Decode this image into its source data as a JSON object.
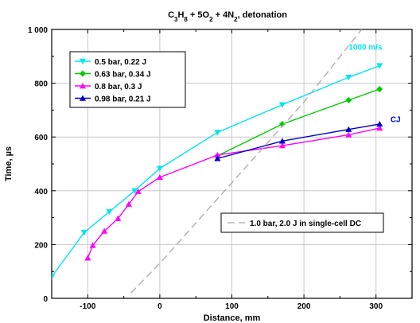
{
  "chart_data": {
    "type": "line",
    "title_parts": [
      {
        "t": "C",
        "sub": false
      },
      {
        "t": "3",
        "sub": true
      },
      {
        "t": "H",
        "sub": false
      },
      {
        "t": "8",
        "sub": true
      },
      {
        "t": " + 5O",
        "sub": false
      },
      {
        "t": "2",
        "sub": true
      },
      {
        "t": " + 4N",
        "sub": false
      },
      {
        "t": "2",
        "sub": true
      },
      {
        "t": ", detonation",
        "sub": false
      }
    ],
    "xlabel": "Distance, mm",
    "ylabel": "Time, µs",
    "xlim": [
      -150,
      350
    ],
    "ylim": [
      0,
      1000
    ],
    "xticks": [
      -100,
      0,
      100,
      200,
      300
    ],
    "yticks": [
      0,
      200,
      400,
      600,
      800,
      1000
    ],
    "ytick_labels": [
      "0",
      "200",
      "400",
      "600",
      "800",
      "1 000"
    ],
    "grid": true,
    "legend_position": "top-left",
    "series": [
      {
        "name": "0.5 bar, 0.22 J",
        "color": "#00e5f0",
        "marker": "triangle-down",
        "x": [
          -150,
          -105,
          -70,
          -35,
          0,
          80,
          170,
          262,
          305
        ],
        "y": [
          80,
          245,
          322,
          400,
          483,
          617,
          720,
          822,
          865
        ]
      },
      {
        "name": "0.63 bar, 0.34 J",
        "color": "#00cc00",
        "marker": "diamond",
        "x": [
          80,
          170,
          262,
          305
        ],
        "y": [
          530,
          648,
          737,
          778
        ]
      },
      {
        "name": "0.8 bar, 0.3 J",
        "color": "#ff00ff",
        "marker": "triangle-up",
        "x": [
          -100,
          -93,
          -77,
          -58,
          -43,
          -30,
          0,
          80,
          170,
          262,
          305
        ],
        "y": [
          150,
          197,
          250,
          297,
          350,
          397,
          450,
          533,
          568,
          608,
          633
        ]
      },
      {
        "name": "0.98 bar, 0.21 J",
        "color": "#0000cc",
        "marker": "triangle-up",
        "x": [
          80,
          170,
          262,
          305
        ],
        "y": [
          520,
          585,
          628,
          648
        ]
      },
      {
        "name": "1.0 bar, 2.0 J in single-cell DC",
        "color": "#aaaaaa",
        "marker": "none",
        "dashed": true,
        "x": [
          -40,
          0,
          100,
          200,
          280
        ],
        "y": [
          20,
          130,
          430,
          730,
          1000
        ]
      }
    ],
    "annotations": [
      {
        "text": "1000 m/s",
        "color": "#00e5f0",
        "x": 262,
        "y": 925
      },
      {
        "text": "CJ",
        "color": "#0000cc",
        "x": 320,
        "y": 655
      }
    ]
  }
}
